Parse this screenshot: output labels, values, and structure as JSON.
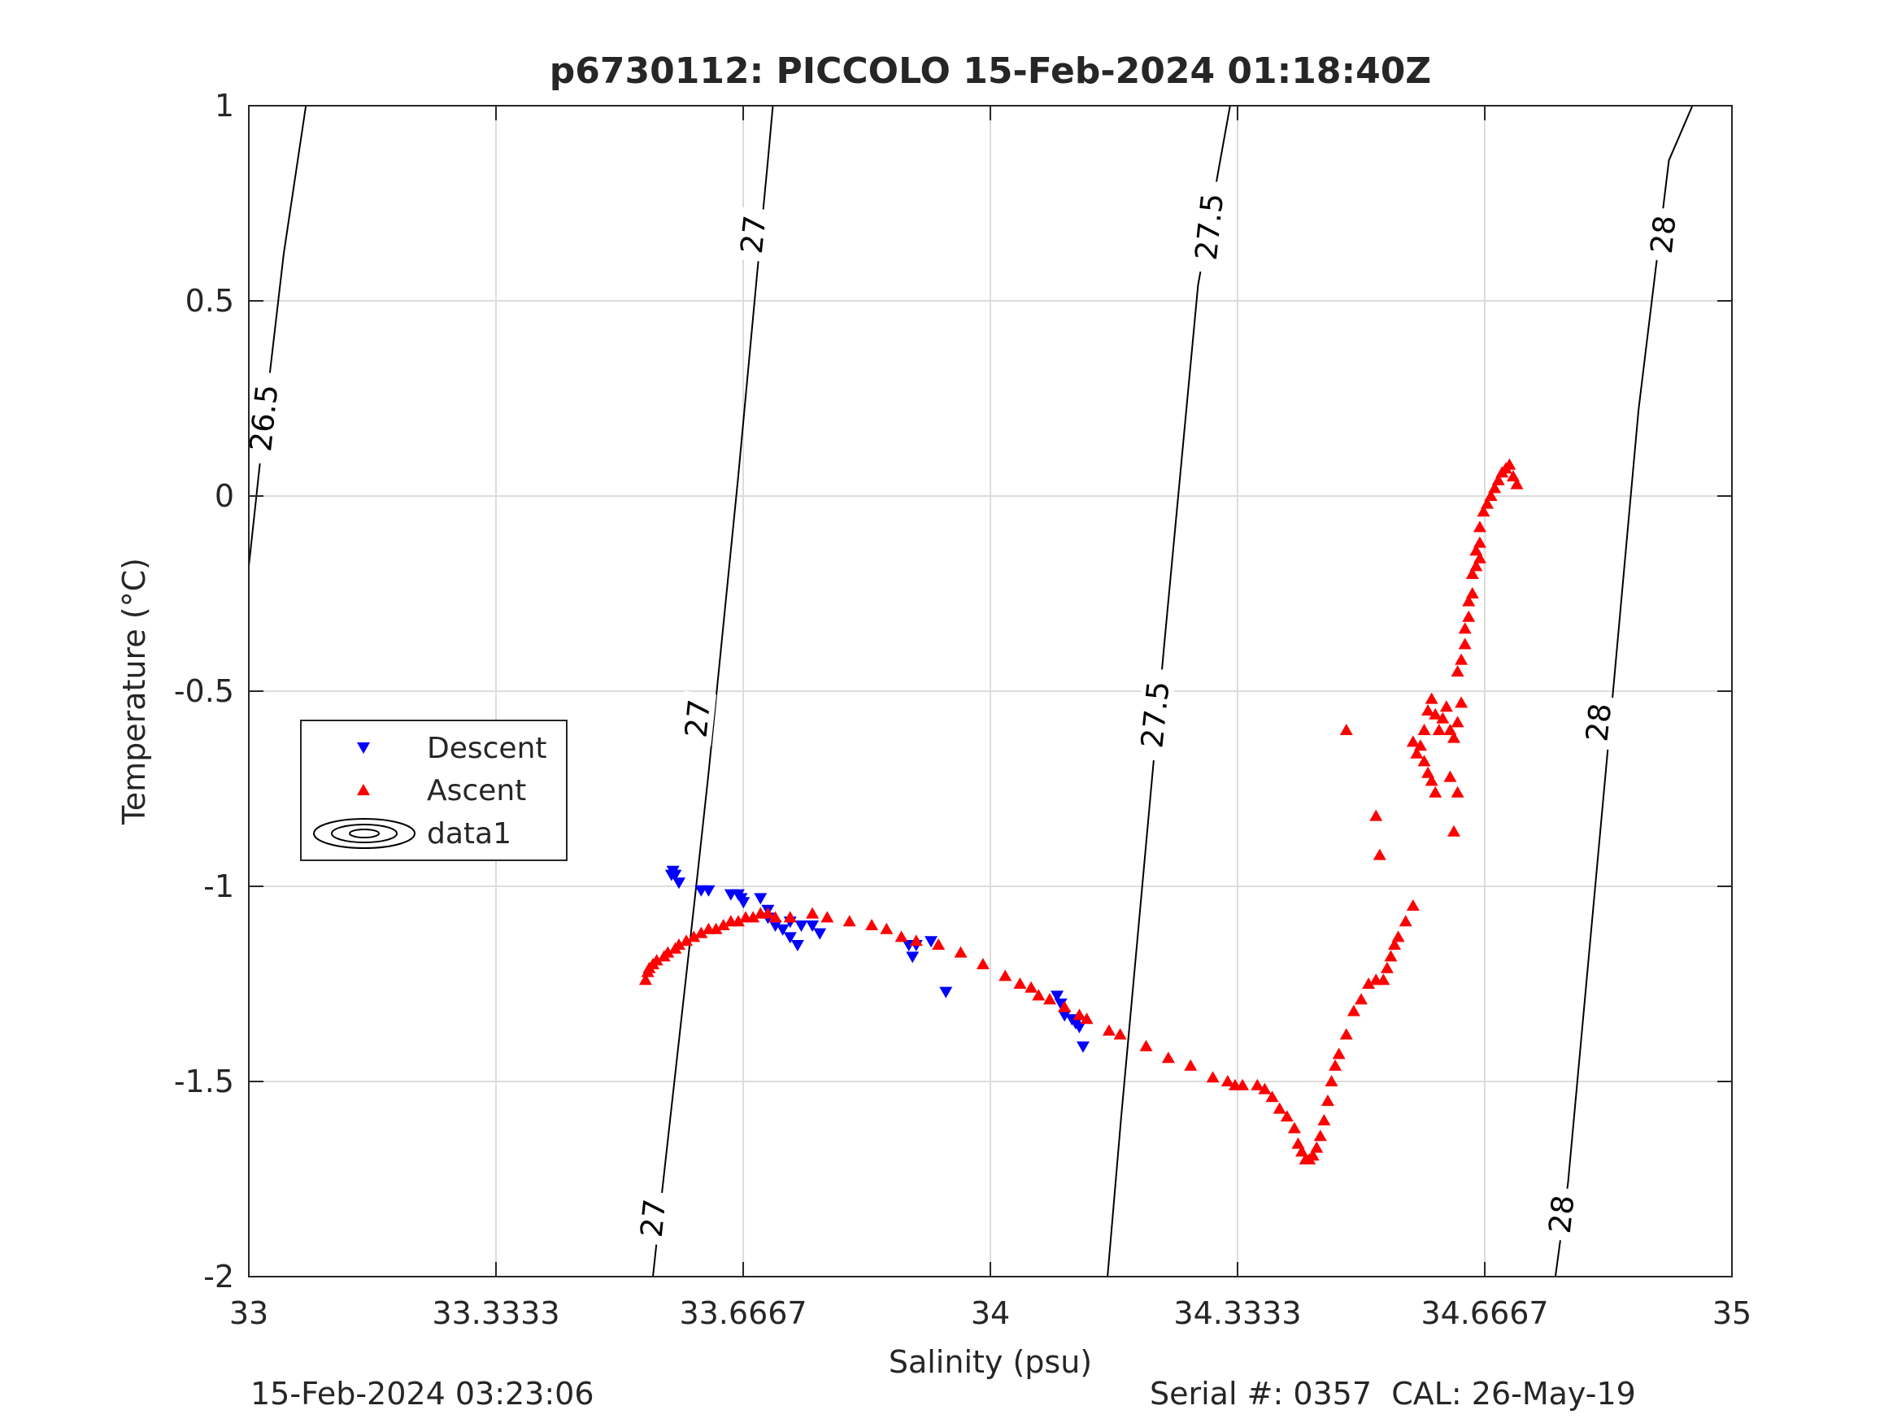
{
  "chart_data": {
    "type": "scatter",
    "title": "p6730112: PICCOLO 15-Feb-2024 01:18:40Z",
    "xlabel": "Salinity (psu)",
    "ylabel": "Temperature (°C)",
    "xlim": [
      33,
      35
    ],
    "ylim": [
      -2,
      1
    ],
    "x_ticks": [
      33,
      33.3333,
      33.6667,
      34,
      34.3333,
      34.6667,
      35
    ],
    "x_tick_labels": [
      "33",
      "33.3333",
      "33.6667",
      "34",
      "34.3333",
      "34.6667",
      "35"
    ],
    "y_ticks": [
      -2,
      -1.5,
      -1,
      -0.5,
      0,
      0.5,
      1
    ],
    "y_tick_labels": [
      "-2",
      "-1.5",
      "-1",
      "-0.5",
      "0",
      "0.5",
      "1"
    ],
    "grid": true,
    "legend": {
      "placement": "left",
      "entries": [
        {
          "label": "Descent",
          "marker": "triangle-down",
          "color": "#0000ff"
        },
        {
          "label": "Ascent",
          "marker": "triangle-up",
          "color": "#ff0000"
        },
        {
          "label": "data1",
          "marker": "contour",
          "color": "#000000"
        }
      ]
    },
    "contours": [
      {
        "level": "26.5",
        "points": [
          [
            33.0,
            -0.18
          ],
          [
            33.025,
            0.26
          ],
          [
            33.047,
            0.62
          ],
          [
            33.077,
            1.0
          ]
        ],
        "labels": [
          {
            "text": "26.5",
            "x": 33.02,
            "y": 0.2
          }
        ]
      },
      {
        "level": "27",
        "points": [
          [
            33.545,
            -2.0
          ],
          [
            33.558,
            -1.77
          ],
          [
            33.605,
            -0.97
          ],
          [
            33.62,
            -0.71
          ],
          [
            33.66,
            0.05
          ],
          [
            33.685,
            0.56
          ],
          [
            33.7,
            0.86
          ],
          [
            33.7067,
            1.0
          ]
        ],
        "labels": [
          {
            "text": "27",
            "x": 33.545,
            "y": -1.85
          },
          {
            "text": "27",
            "x": 33.605,
            "y": -0.57
          },
          {
            "text": "27",
            "x": 33.68,
            "y": 0.67
          }
        ]
      },
      {
        "level": "27.5",
        "points": [
          [
            34.158,
            -2.0
          ],
          [
            34.176,
            -1.6
          ],
          [
            34.235,
            -0.37
          ],
          [
            34.28,
            0.54
          ],
          [
            34.31,
            0.86
          ],
          [
            34.3233,
            1.0
          ]
        ],
        "labels": [
          {
            "text": "27.5",
            "x": 34.222,
            "y": -0.56
          },
          {
            "text": "27.5",
            "x": 34.295,
            "y": 0.69
          }
        ]
      },
      {
        "level": "28",
        "points": [
          [
            34.762,
            -2.0
          ],
          [
            34.779,
            -1.76
          ],
          [
            34.835,
            -0.6
          ],
          [
            34.874,
            0.22
          ],
          [
            34.915,
            0.86
          ],
          [
            34.9467,
            1.0
          ]
        ],
        "labels": [
          {
            "text": "28",
            "x": 34.77,
            "y": -1.84
          },
          {
            "text": "28",
            "x": 34.82,
            "y": -0.58
          },
          {
            "text": "28",
            "x": 34.907,
            "y": 0.67
          }
        ]
      }
    ],
    "series": [
      {
        "name": "Descent",
        "marker": "triangle-down",
        "color": "#0000ff",
        "points": [
          [
            33.57,
            -0.97
          ],
          [
            33.572,
            -0.96
          ],
          [
            33.575,
            -0.97
          ],
          [
            33.58,
            -0.99
          ],
          [
            33.61,
            -1.01
          ],
          [
            33.62,
            -1.01
          ],
          [
            33.65,
            -1.02
          ],
          [
            33.66,
            -1.02
          ],
          [
            33.664,
            -1.03
          ],
          [
            33.667,
            -1.04
          ],
          [
            33.69,
            -1.03
          ],
          [
            33.7,
            -1.06
          ],
          [
            33.7,
            -1.08
          ],
          [
            33.71,
            -1.1
          ],
          [
            33.72,
            -1.11
          ],
          [
            33.73,
            -1.09
          ],
          [
            33.73,
            -1.13
          ],
          [
            33.74,
            -1.15
          ],
          [
            33.745,
            -1.1
          ],
          [
            33.76,
            -1.1
          ],
          [
            33.77,
            -1.12
          ],
          [
            33.89,
            -1.15
          ],
          [
            33.895,
            -1.18
          ],
          [
            33.9,
            -1.15
          ],
          [
            33.92,
            -1.14
          ],
          [
            33.94,
            -1.27
          ],
          [
            34.09,
            -1.28
          ],
          [
            34.095,
            -1.3
          ],
          [
            34.1,
            -1.33
          ],
          [
            34.11,
            -1.34
          ],
          [
            34.115,
            -1.35
          ],
          [
            34.12,
            -1.36
          ],
          [
            34.125,
            -1.41
          ]
        ]
      },
      {
        "name": "Ascent",
        "marker": "triangle-up",
        "color": "#ff0000",
        "points": [
          [
            33.535,
            -1.24
          ],
          [
            33.538,
            -1.22
          ],
          [
            33.54,
            -1.21
          ],
          [
            33.545,
            -1.2
          ],
          [
            33.55,
            -1.19
          ],
          [
            33.56,
            -1.18
          ],
          [
            33.565,
            -1.17
          ],
          [
            33.575,
            -1.16
          ],
          [
            33.58,
            -1.15
          ],
          [
            33.59,
            -1.14
          ],
          [
            33.6,
            -1.13
          ],
          [
            33.61,
            -1.12
          ],
          [
            33.62,
            -1.11
          ],
          [
            33.63,
            -1.11
          ],
          [
            33.64,
            -1.1
          ],
          [
            33.65,
            -1.09
          ],
          [
            33.66,
            -1.09
          ],
          [
            33.67,
            -1.08
          ],
          [
            33.68,
            -1.08
          ],
          [
            33.69,
            -1.07
          ],
          [
            33.7,
            -1.07
          ],
          [
            33.71,
            -1.08
          ],
          [
            33.73,
            -1.08
          ],
          [
            33.76,
            -1.07
          ],
          [
            33.78,
            -1.08
          ],
          [
            33.81,
            -1.09
          ],
          [
            33.84,
            -1.1
          ],
          [
            33.86,
            -1.11
          ],
          [
            33.88,
            -1.13
          ],
          [
            33.9,
            -1.14
          ],
          [
            33.93,
            -1.15
          ],
          [
            33.96,
            -1.17
          ],
          [
            33.99,
            -1.2
          ],
          [
            34.02,
            -1.23
          ],
          [
            34.04,
            -1.25
          ],
          [
            34.055,
            -1.26
          ],
          [
            34.065,
            -1.28
          ],
          [
            34.08,
            -1.29
          ],
          [
            34.1,
            -1.31
          ],
          [
            34.12,
            -1.33
          ],
          [
            34.13,
            -1.34
          ],
          [
            34.16,
            -1.37
          ],
          [
            34.175,
            -1.38
          ],
          [
            34.21,
            -1.41
          ],
          [
            34.24,
            -1.44
          ],
          [
            34.27,
            -1.46
          ],
          [
            34.3,
            -1.49
          ],
          [
            34.32,
            -1.5
          ],
          [
            34.33,
            -1.51
          ],
          [
            34.34,
            -1.51
          ],
          [
            34.36,
            -1.51
          ],
          [
            34.37,
            -1.52
          ],
          [
            34.38,
            -1.54
          ],
          [
            34.39,
            -1.57
          ],
          [
            34.4,
            -1.59
          ],
          [
            34.41,
            -1.62
          ],
          [
            34.415,
            -1.66
          ],
          [
            34.42,
            -1.68
          ],
          [
            34.425,
            -1.7
          ],
          [
            34.43,
            -1.7
          ],
          [
            34.435,
            -1.69
          ],
          [
            34.44,
            -1.67
          ],
          [
            34.445,
            -1.64
          ],
          [
            34.45,
            -1.6
          ],
          [
            34.455,
            -1.55
          ],
          [
            34.46,
            -1.5
          ],
          [
            34.465,
            -1.46
          ],
          [
            34.47,
            -1.43
          ],
          [
            34.48,
            -1.38
          ],
          [
            34.49,
            -1.32
          ],
          [
            34.5,
            -1.29
          ],
          [
            34.51,
            -1.25
          ],
          [
            34.52,
            -1.24
          ],
          [
            34.53,
            -1.24
          ],
          [
            34.535,
            -1.21
          ],
          [
            34.54,
            -1.18
          ],
          [
            34.545,
            -1.15
          ],
          [
            34.55,
            -1.13
          ],
          [
            34.56,
            -1.09
          ],
          [
            34.57,
            -1.05
          ],
          [
            34.48,
            -0.6
          ],
          [
            34.52,
            -0.82
          ],
          [
            34.525,
            -0.92
          ],
          [
            34.57,
            -0.63
          ],
          [
            34.575,
            -0.66
          ],
          [
            34.58,
            -0.64
          ],
          [
            34.585,
            -0.6
          ],
          [
            34.59,
            -0.55
          ],
          [
            34.595,
            -0.52
          ],
          [
            34.6,
            -0.56
          ],
          [
            34.605,
            -0.6
          ],
          [
            34.61,
            -0.57
          ],
          [
            34.615,
            -0.54
          ],
          [
            34.62,
            -0.6
          ],
          [
            34.625,
            -0.62
          ],
          [
            34.63,
            -0.58
          ],
          [
            34.635,
            -0.53
          ],
          [
            34.585,
            -0.68
          ],
          [
            34.59,
            -0.71
          ],
          [
            34.595,
            -0.73
          ],
          [
            34.6,
            -0.76
          ],
          [
            34.62,
            -0.72
          ],
          [
            34.625,
            -0.86
          ],
          [
            34.63,
            -0.76
          ],
          [
            34.63,
            -0.45
          ],
          [
            34.635,
            -0.42
          ],
          [
            34.64,
            -0.38
          ],
          [
            34.64,
            -0.34
          ],
          [
            34.645,
            -0.31
          ],
          [
            34.645,
            -0.27
          ],
          [
            34.65,
            -0.25
          ],
          [
            34.65,
            -0.2
          ],
          [
            34.655,
            -0.18
          ],
          [
            34.655,
            -0.14
          ],
          [
            34.66,
            -0.12
          ],
          [
            34.66,
            -0.08
          ],
          [
            34.665,
            -0.04
          ],
          [
            34.67,
            -0.02
          ],
          [
            34.675,
            0.0
          ],
          [
            34.68,
            0.02
          ],
          [
            34.685,
            0.04
          ],
          [
            34.69,
            0.06
          ],
          [
            34.695,
            0.07
          ],
          [
            34.7,
            0.08
          ],
          [
            34.705,
            0.05
          ],
          [
            34.71,
            0.03
          ],
          [
            34.66,
            -0.16
          ]
        ]
      }
    ]
  },
  "footer": {
    "timestamp": "15-Feb-2024 03:23:06",
    "serial": "Serial #: 0357  CAL: 26-May-19"
  }
}
